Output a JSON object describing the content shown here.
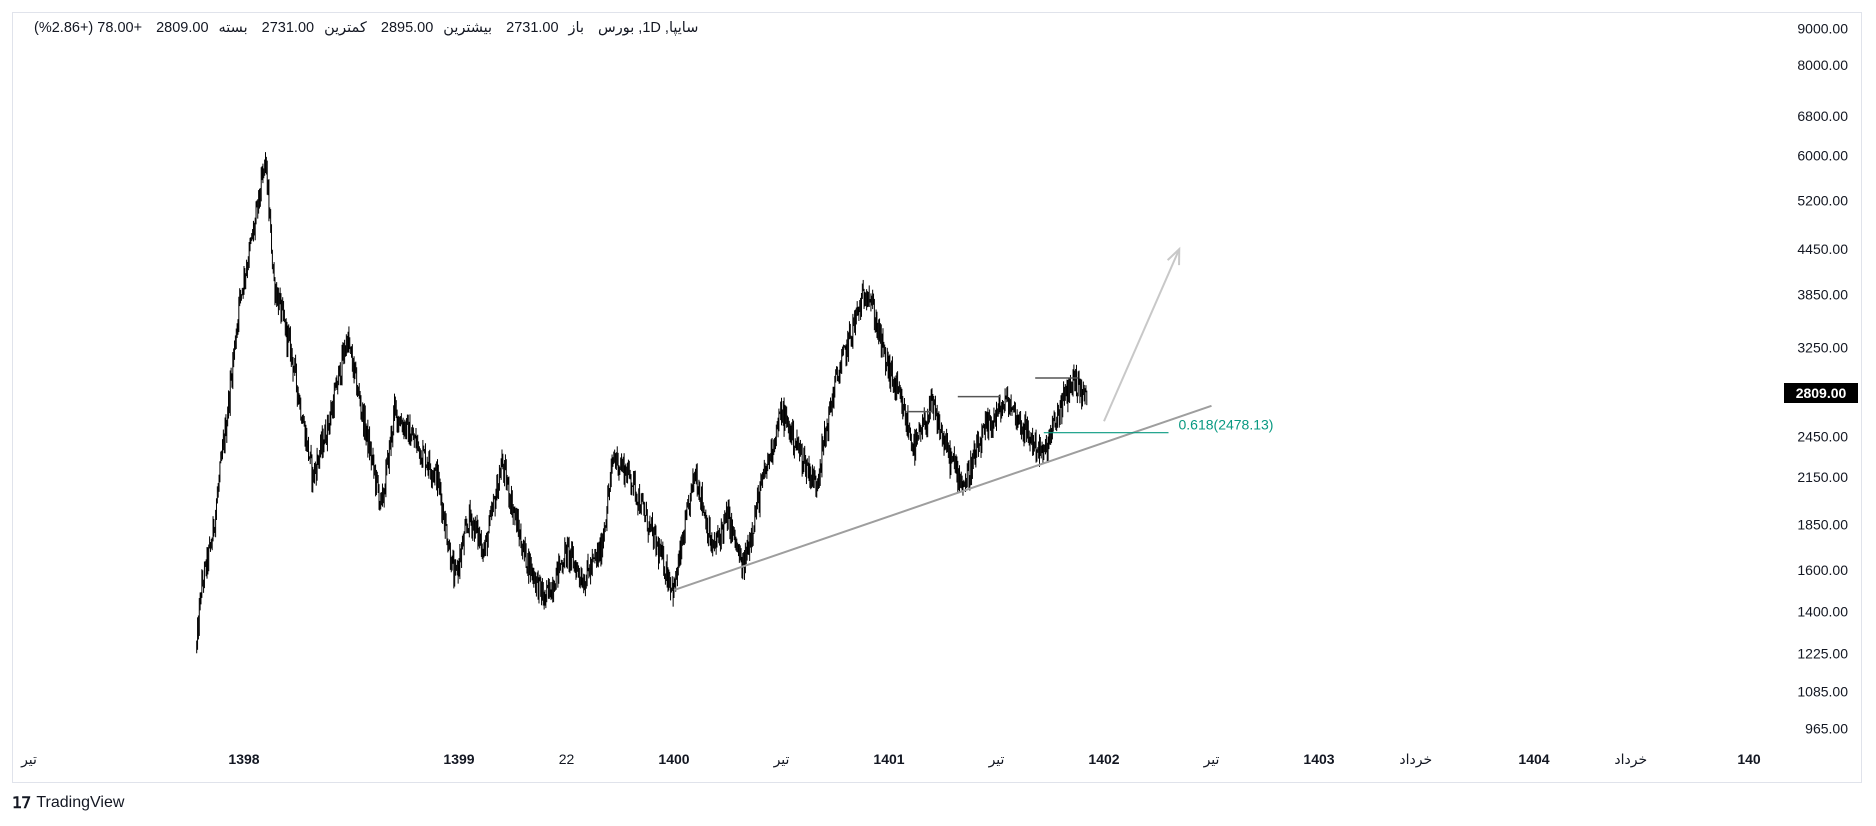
{
  "legend": {
    "symbol": "سایپا, 1D, بورس",
    "open_label": "باز",
    "open": "2731.00",
    "high_label": "بیشترین",
    "high": "2895.00",
    "low_label": "کمترین",
    "low": "2731.00",
    "close_label": "بسته",
    "close": "2809.00",
    "change": "+78.00 (+2.86%)"
  },
  "last_price": "2809.00",
  "fib_label": "0.618(2478.13)",
  "brand": "TradingView",
  "colors": {
    "candle": "#000000",
    "trendline": "#9e9e9e",
    "fib": "#089981",
    "arrow": "#c8c8c8",
    "badge": "#000000"
  },
  "chart_data": {
    "type": "candlestick",
    "y_scale": "log",
    "ylim": [
      930,
      9300
    ],
    "y_ticks": [
      965,
      1085,
      1225,
      1400,
      1600,
      1850,
      2150,
      2450,
      2809,
      3250,
      3850,
      4450,
      5200,
      6000,
      6800,
      8000,
      9000
    ],
    "y_tick_labels": [
      "965.00",
      "1085.00",
      "1225.00",
      "1400.00",
      "1600.00",
      "1850.00",
      "2150.00",
      "2450.00",
      "2809.00",
      "3250.00",
      "3850.00",
      "4450.00",
      "5200.00",
      "6000.00",
      "6800.00",
      "8000.00",
      "9000.00"
    ],
    "x_labels": [
      {
        "text": "تیر",
        "bold": false,
        "t": 0.0
      },
      {
        "text": "1398",
        "bold": true,
        "t": 1.0
      },
      {
        "text": "1399",
        "bold": true,
        "t": 2.0
      },
      {
        "text": "22",
        "bold": false,
        "t": 2.5
      },
      {
        "text": "1400",
        "bold": true,
        "t": 3.0
      },
      {
        "text": "تیر",
        "bold": false,
        "t": 3.5
      },
      {
        "text": "1401",
        "bold": true,
        "t": 4.0
      },
      {
        "text": "تیر",
        "bold": false,
        "t": 4.5
      },
      {
        "text": "1402",
        "bold": true,
        "t": 5.0
      },
      {
        "text": "تیر",
        "bold": false,
        "t": 5.5
      },
      {
        "text": "1403",
        "bold": true,
        "t": 6.0
      },
      {
        "text": "خرداد",
        "bold": false,
        "t": 6.45
      },
      {
        "text": "1404",
        "bold": true,
        "t": 7.0
      },
      {
        "text": "خرداد",
        "bold": false,
        "t": 7.45
      },
      {
        "text": "140",
        "bold": true,
        "t": 8.0
      }
    ],
    "price_path": [
      {
        "t": 0.78,
        "v": 1250
      },
      {
        "t": 0.8,
        "v": 1500
      },
      {
        "t": 0.85,
        "v": 1750
      },
      {
        "t": 0.92,
        "v": 2600
      },
      {
        "t": 0.98,
        "v": 3800
      },
      {
        "t": 1.05,
        "v": 4800
      },
      {
        "t": 1.1,
        "v": 5900
      },
      {
        "t": 1.14,
        "v": 4000
      },
      {
        "t": 1.22,
        "v": 3200
      },
      {
        "t": 1.32,
        "v": 2150
      },
      {
        "t": 1.4,
        "v": 2600
      },
      {
        "t": 1.48,
        "v": 3350
      },
      {
        "t": 1.56,
        "v": 2550
      },
      {
        "t": 1.64,
        "v": 1950
      },
      {
        "t": 1.7,
        "v": 2650
      },
      {
        "t": 1.8,
        "v": 2400
      },
      {
        "t": 1.9,
        "v": 2150
      },
      {
        "t": 1.98,
        "v": 1550
      },
      {
        "t": 2.05,
        "v": 1900
      },
      {
        "t": 2.12,
        "v": 1700
      },
      {
        "t": 2.2,
        "v": 2250
      },
      {
        "t": 2.3,
        "v": 1700
      },
      {
        "t": 2.4,
        "v": 1450
      },
      {
        "t": 2.5,
        "v": 1700
      },
      {
        "t": 2.58,
        "v": 1550
      },
      {
        "t": 2.66,
        "v": 1700
      },
      {
        "t": 2.72,
        "v": 2300
      },
      {
        "t": 2.8,
        "v": 2150
      },
      {
        "t": 2.88,
        "v": 1850
      },
      {
        "t": 3.0,
        "v": 1500
      },
      {
        "t": 3.1,
        "v": 2200
      },
      {
        "t": 3.18,
        "v": 1700
      },
      {
        "t": 3.25,
        "v": 1900
      },
      {
        "t": 3.32,
        "v": 1600
      },
      {
        "t": 3.4,
        "v": 2050
      },
      {
        "t": 3.5,
        "v": 2650
      },
      {
        "t": 3.58,
        "v": 2350
      },
      {
        "t": 3.66,
        "v": 2100
      },
      {
        "t": 3.75,
        "v": 2900
      },
      {
        "t": 3.85,
        "v": 3600
      },
      {
        "t": 3.9,
        "v": 3950
      },
      {
        "t": 3.98,
        "v": 3150
      },
      {
        "t": 4.05,
        "v": 2750
      },
      {
        "t": 4.12,
        "v": 2350
      },
      {
        "t": 4.2,
        "v": 2700
      },
      {
        "t": 4.28,
        "v": 2300
      },
      {
        "t": 4.35,
        "v": 2100
      },
      {
        "t": 4.45,
        "v": 2500
      },
      {
        "t": 4.55,
        "v": 2750
      },
      {
        "t": 4.65,
        "v": 2450
      },
      {
        "t": 4.72,
        "v": 2300
      },
      {
        "t": 4.8,
        "v": 2700
      },
      {
        "t": 4.86,
        "v": 2950
      },
      {
        "t": 4.92,
        "v": 2750
      }
    ],
    "trendline": [
      {
        "t": 3.0,
        "v": 1500
      },
      {
        "t": 5.5,
        "v": 2700
      }
    ],
    "resistance_lines": [
      {
        "t1": 4.08,
        "t2": 4.2,
        "v": 2650
      },
      {
        "t1": 4.32,
        "t2": 4.52,
        "v": 2780
      },
      {
        "t1": 4.68,
        "t2": 4.88,
        "v": 2950
      }
    ],
    "fib_level": {
      "label": "0.618(2478.13)",
      "value": 2478.13,
      "t1": 4.72,
      "t2": 5.3
    },
    "projection_arrow": [
      {
        "t": 5.0,
        "v": 2570
      },
      {
        "t": 5.35,
        "v": 4450
      }
    ]
  }
}
